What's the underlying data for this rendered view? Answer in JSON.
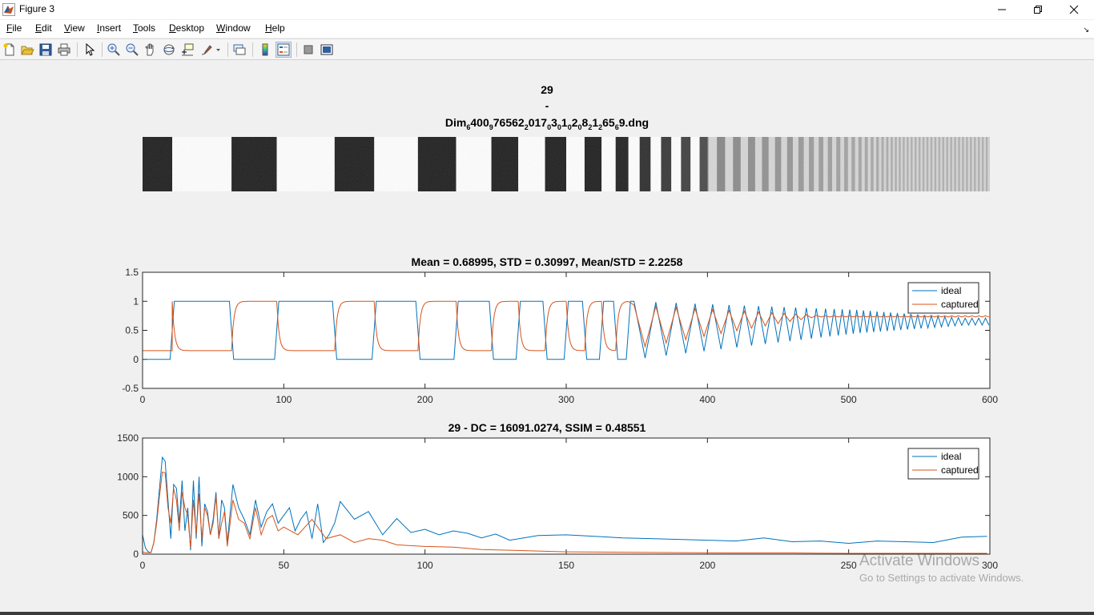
{
  "window": {
    "title": "Figure 3",
    "icon": "matlab-icon",
    "controls": [
      "minimize-icon",
      "restore-icon",
      "close-icon"
    ]
  },
  "menu": {
    "items": [
      {
        "mnemonic": "F",
        "rest": "ile"
      },
      {
        "mnemonic": "E",
        "rest": "dit"
      },
      {
        "mnemonic": "V",
        "rest": "iew"
      },
      {
        "mnemonic": "I",
        "rest": "nsert"
      },
      {
        "mnemonic": "T",
        "rest": "ools"
      },
      {
        "mnemonic": "D",
        "rest": "esktop"
      },
      {
        "mnemonic": "W",
        "rest": "indow"
      },
      {
        "mnemonic": "H",
        "rest": "elp"
      }
    ],
    "dock_arrow": "↘"
  },
  "toolbar": {
    "icons": [
      "new-figure-icon",
      "open-file-icon",
      "save-icon",
      "print-icon",
      "edit-plot-icon",
      "zoom-in-icon",
      "zoom-out-icon",
      "pan-icon",
      "rotate-3d-icon",
      "data-cursor-icon",
      "brush-icon",
      "link-plot-icon",
      "colorbar-icon",
      "legend-icon",
      "hide-plot-tools-icon",
      "show-plot-tools-icon"
    ]
  },
  "image_panel": {
    "title_line1": "29",
    "title_line2": "-",
    "title_parts": [
      {
        "t": "Dim",
        "s": "6"
      },
      {
        "t": "400",
        "s": "9"
      },
      {
        "t": "76562",
        "s": "2"
      },
      {
        "t": "017",
        "s": "0"
      },
      {
        "t": "3",
        "s": "0"
      },
      {
        "t": "1",
        "s": "0"
      },
      {
        "t": "2",
        "s": "0"
      },
      {
        "t": "8",
        "s": "2"
      },
      {
        "t": "1",
        "s": "2"
      },
      {
        "t": "65",
        "s": "6"
      },
      {
        "t": "9.dng",
        "s": ""
      }
    ]
  },
  "chart_data": [
    {
      "type": "line",
      "title": "Mean = 0.68995, STD = 0.30997, Mean/STD = 2.2258",
      "xlim": [
        0,
        600
      ],
      "ylim": [
        -0.5,
        1.5
      ],
      "xticks": [
        0,
        100,
        200,
        300,
        400,
        500,
        600
      ],
      "yticks": [
        -0.5,
        0,
        0.5,
        1,
        1.5
      ],
      "xtick_labels": [
        "0",
        "100",
        "200",
        "300",
        "400",
        "500",
        "600"
      ],
      "ytick_labels": [
        "-0.5",
        "0",
        "0.5",
        "1",
        "1.5"
      ],
      "legend_position": "top-right",
      "series": [
        {
          "name": "ideal",
          "color": "#0072bd",
          "low": 0.0,
          "high": 1.0,
          "tail_mean": 0.62
        },
        {
          "name": "captured",
          "color": "#d95319",
          "low": 0.15,
          "high": 1.0,
          "tail_mean": 0.74
        }
      ],
      "square_wave_edges": [
        21,
        63,
        95,
        136,
        164,
        195,
        222,
        247,
        266,
        285,
        300,
        313,
        325,
        335,
        344
      ]
    },
    {
      "type": "line",
      "title": "29 - DC = 16091.0274, SSIM = 0.48551",
      "xlim": [
        0,
        300
      ],
      "ylim": [
        0,
        1500
      ],
      "xticks": [
        0,
        50,
        100,
        150,
        200,
        250,
        300
      ],
      "yticks": [
        0,
        500,
        1000,
        1500
      ],
      "xtick_labels": [
        "0",
        "50",
        "100",
        "150",
        "200",
        "250",
        "300"
      ],
      "ytick_labels": [
        "0",
        "500",
        "1000",
        "1500"
      ],
      "legend_position": "top-right",
      "series": [
        {
          "name": "ideal",
          "color": "#0072bd",
          "x": [
            0,
            1,
            2,
            3,
            4,
            5,
            6,
            7,
            8,
            9,
            10,
            11,
            12,
            13,
            14,
            15,
            16,
            17,
            18,
            19,
            20,
            21,
            22,
            23,
            24,
            25,
            26,
            27,
            28,
            29,
            30,
            32,
            34,
            36,
            38,
            40,
            42,
            44,
            46,
            48,
            50,
            52,
            54,
            56,
            58,
            60,
            62,
            64,
            66,
            68,
            70,
            75,
            80,
            85,
            90,
            95,
            100,
            105,
            110,
            115,
            120,
            125,
            130,
            140,
            150,
            160,
            170,
            180,
            190,
            200,
            210,
            220,
            230,
            240,
            250,
            260,
            270,
            280,
            290,
            299
          ],
          "y": [
            250,
            80,
            30,
            20,
            150,
            450,
            850,
            1250,
            1200,
            700,
            200,
            900,
            850,
            400,
            950,
            300,
            600,
            50,
            950,
            200,
            1000,
            100,
            650,
            550,
            250,
            450,
            800,
            200,
            700,
            600,
            150,
            900,
            600,
            450,
            250,
            700,
            350,
            550,
            650,
            400,
            500,
            600,
            300,
            450,
            550,
            200,
            650,
            150,
            250,
            400,
            680,
            450,
            550,
            250,
            460,
            280,
            320,
            250,
            300,
            270,
            210,
            260,
            180,
            240,
            250,
            230,
            210,
            200,
            190,
            180,
            170,
            210,
            160,
            170,
            140,
            170,
            160,
            150,
            220,
            230
          ]
        },
        {
          "name": "captured",
          "color": "#d95319",
          "x": [
            0,
            1,
            2,
            3,
            4,
            5,
            6,
            7,
            8,
            9,
            10,
            11,
            12,
            13,
            14,
            15,
            16,
            17,
            18,
            19,
            20,
            21,
            22,
            23,
            24,
            25,
            26,
            27,
            28,
            29,
            30,
            32,
            34,
            36,
            38,
            40,
            42,
            44,
            46,
            48,
            50,
            55,
            60,
            65,
            70,
            75,
            80,
            85,
            90,
            100,
            110,
            120,
            130,
            140,
            150,
            170,
            190,
            210,
            230,
            250,
            270,
            299
          ],
          "y": [
            30,
            20,
            20,
            20,
            150,
            400,
            750,
            1060,
            1050,
            600,
            400,
            850,
            700,
            300,
            800,
            600,
            500,
            80,
            700,
            250,
            780,
            200,
            600,
            500,
            250,
            400,
            750,
            200,
            400,
            550,
            100,
            700,
            450,
            400,
            200,
            600,
            250,
            450,
            500,
            300,
            350,
            250,
            450,
            200,
            250,
            150,
            200,
            180,
            120,
            100,
            90,
            60,
            50,
            40,
            30,
            25,
            20,
            15,
            15,
            10,
            10,
            10
          ]
        }
      ]
    }
  ],
  "watermark": {
    "line1": "Activate Windows",
    "line2": "Go to Settings to activate Windows."
  }
}
